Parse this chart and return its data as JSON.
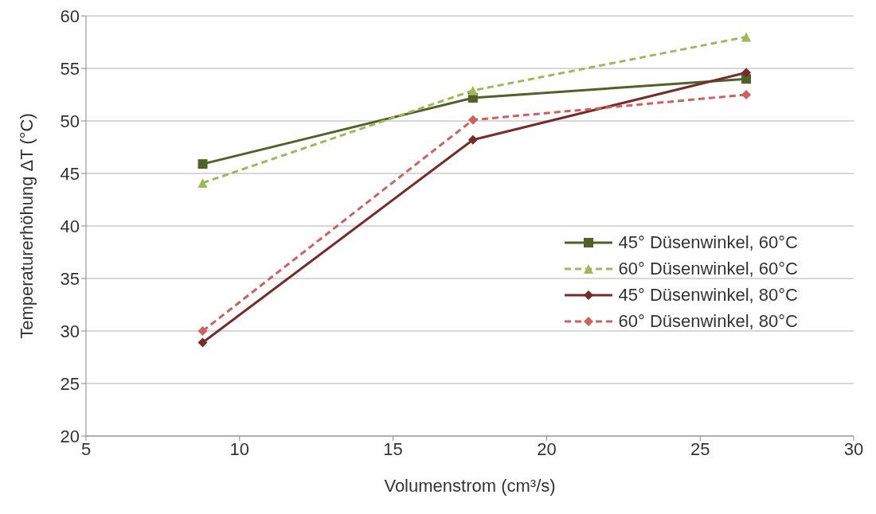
{
  "chart_data": {
    "type": "line",
    "xlabel": "Volumenstrom (cm³/s)",
    "ylabel": "Temperaturerhöhung ΔT (°C)",
    "x": [
      8.8,
      17.6,
      26.5
    ],
    "xlim": [
      5,
      30
    ],
    "xticks": [
      5,
      10,
      15,
      20,
      25,
      30
    ],
    "ylim": [
      20,
      60
    ],
    "yticks": [
      20,
      25,
      30,
      35,
      40,
      45,
      50,
      55,
      60
    ],
    "grid": "y",
    "legend": "right",
    "series": [
      {
        "name": "45° Düsenwinkel, 60°C",
        "color": "#4f6228",
        "marker": "square",
        "line_style": "solid",
        "values": [
          45.9,
          52.2,
          54.0
        ]
      },
      {
        "name": "60° Düsenwinkel, 60°C",
        "color": "#9bbb59",
        "marker": "triangle",
        "line_style": "dashed",
        "values": [
          44.1,
          52.9,
          58.0
        ]
      },
      {
        "name": "45° Düsenwinkel, 80°C",
        "color": "#772c2a",
        "marker": "diamond",
        "line_style": "solid",
        "values": [
          28.9,
          48.2,
          54.6
        ]
      },
      {
        "name": "60° Düsenwinkel, 80°C",
        "color": "#d0605c",
        "marker": "diamond",
        "line_style": "dashed",
        "values": [
          30.0,
          50.1,
          52.5
        ]
      }
    ]
  }
}
